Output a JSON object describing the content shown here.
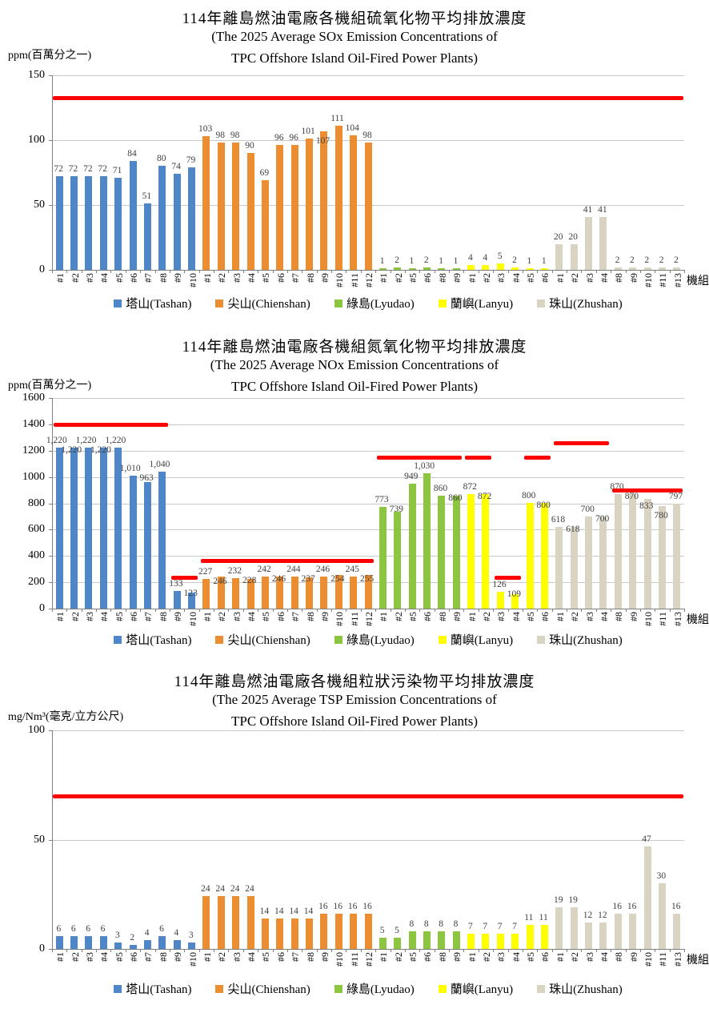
{
  "colors": {
    "tashan": "#4E86C8",
    "chienshan": "#ED8D31",
    "lyudao": "#8CC540",
    "lanyu": "#FFFF00",
    "zhushan": "#D9D3C2",
    "limit": "#FE0000",
    "grid": "#C9C9C9",
    "axis": "#808080",
    "value_label": "#404040"
  },
  "legend": {
    "items": [
      {
        "id": "tashan",
        "label": "塔山(Tashan)"
      },
      {
        "id": "chienshan",
        "label": "尖山(Chienshan)"
      },
      {
        "id": "lyudao",
        "label": "綠島(Lyudao)"
      },
      {
        "id": "lanyu",
        "label": "蘭嶼(Lanyu)"
      },
      {
        "id": "zhushan",
        "label": "珠山(Zhushan)"
      }
    ]
  },
  "x_axis_title": "機組",
  "chart_data": [
    {
      "id": "sox",
      "type": "bar",
      "title_zh": "114年離島燃油電廠各機組硫氧化物平均排放濃度",
      "title_en1": "(The 2025 Average SOx Emission Concentrations of",
      "title_en2": "TPC Offshore Island Oil-Fired Power Plants)",
      "y_unit": "ppm(百萬分之一)",
      "y_max": 150,
      "y_ticks": [
        0,
        50,
        100,
        150
      ],
      "series": [
        {
          "group": "tashan",
          "units": [
            "#1",
            "#2",
            "#3",
            "#4",
            "#5",
            "#6",
            "#7",
            "#8",
            "#9",
            "#10"
          ],
          "values": [
            72,
            72,
            72,
            72,
            71,
            84,
            51,
            80,
            74,
            79
          ]
        },
        {
          "group": "chienshan",
          "units": [
            "#1",
            "#2",
            "#3",
            "#4",
            "#5",
            "#6",
            "#7",
            "#8",
            "#9",
            "#10",
            "#11",
            "#12"
          ],
          "values": [
            103,
            98,
            98,
            90,
            69,
            96,
            96,
            101,
            107,
            111,
            104,
            98
          ]
        },
        {
          "group": "lyudao",
          "units": [
            "#1",
            "#2",
            "#5",
            "#6",
            "#8",
            "#9"
          ],
          "values": [
            1,
            2,
            1,
            2,
            1,
            1
          ]
        },
        {
          "group": "lanyu",
          "units": [
            "#1",
            "#2",
            "#3",
            "#4",
            "#5",
            "#6"
          ],
          "values": [
            4,
            4,
            5,
            2,
            1,
            1
          ]
        },
        {
          "group": "zhushan",
          "units": [
            "#1",
            "#2",
            "#3",
            "#4",
            "#8",
            "#9",
            "#10",
            "#11",
            "#13"
          ],
          "values": [
            20,
            20,
            41,
            41,
            2,
            2,
            2,
            2,
            2
          ]
        }
      ],
      "limits": [
        {
          "label": "133",
          "value": 133,
          "from": 0,
          "to": 42,
          "box_dx": -8,
          "box_dy": -20
        }
      ]
    },
    {
      "id": "nox",
      "type": "bar",
      "title_zh": "114年離島燃油電廠各機組氮氧化物平均排放濃度",
      "title_en1": "(The 2025 Average NOx Emission Concentrations of",
      "title_en2": "TPC Offshore Island Oil-Fired Power Plants)",
      "y_unit": "ppm(百萬分之一)",
      "y_max": 1600,
      "y_ticks": [
        0,
        200,
        400,
        600,
        800,
        1000,
        1200,
        1400,
        1600
      ],
      "series": [
        {
          "group": "tashan",
          "units": [
            "#1",
            "#2",
            "#3",
            "#4",
            "#5",
            "#6",
            "#7",
            "#8",
            "#9",
            "#10"
          ],
          "values": [
            1220,
            1220,
            1220,
            1220,
            1220,
            1010,
            963,
            1040,
            133,
            123
          ]
        },
        {
          "group": "chienshan",
          "units": [
            "#1",
            "#2",
            "#3",
            "#4",
            "#5",
            "#6",
            "#7",
            "#8",
            "#9",
            "#10",
            "#11",
            "#12"
          ],
          "values": [
            227,
            246,
            232,
            228,
            242,
            246,
            244,
            237,
            246,
            254,
            245,
            255
          ]
        },
        {
          "group": "lyudao",
          "units": [
            "#1",
            "#2",
            "#5",
            "#6",
            "#8",
            "#9"
          ],
          "values": [
            773,
            739,
            949,
            1030,
            860,
            860
          ]
        },
        {
          "group": "lanyu",
          "units": [
            "#1",
            "#2",
            "#3",
            "#4",
            "#5",
            "#6"
          ],
          "values": [
            872,
            872,
            126,
            109,
            800,
            800
          ]
        },
        {
          "group": "zhushan",
          "units": [
            "#1",
            "#2",
            "#3",
            "#4",
            "#8",
            "#9",
            "#10",
            "#11",
            "#13"
          ],
          "values": [
            618,
            618,
            700,
            700,
            870,
            870,
            833,
            780,
            797
          ]
        }
      ],
      "limits": [
        {
          "label": "1,400",
          "value": 1400,
          "from": 0,
          "to": 7,
          "box_dx": 30
        },
        {
          "label": "235",
          "value": 235,
          "from": 8,
          "to": 9
        },
        {
          "label": "363",
          "value": 363,
          "from": 10,
          "to": 21
        },
        {
          "label": "1,150",
          "value": 1150,
          "from": 22,
          "to": 27,
          "box_dx": 10
        },
        {
          "label": "1,150",
          "value": 1150,
          "from": 28,
          "to": 29,
          "box_dx": 16
        },
        {
          "label": "235",
          "value": 235,
          "from": 30,
          "to": 31
        },
        {
          "label": "1,150",
          "value": 1150,
          "from": 32,
          "to": 33
        },
        {
          "label": "1,260",
          "value": 1260,
          "from": 34,
          "to": 37,
          "box_dx": 17
        },
        {
          "label": "900",
          "value": 900,
          "from": 38,
          "to": 42,
          "box_dx": -8
        }
      ]
    },
    {
      "id": "tsp",
      "type": "bar",
      "title_zh": "114年離島燃油電廠各機組粒狀污染物平均排放濃度",
      "title_en1": "(The 2025 Average TSP Emission Concentrations of",
      "title_en2": "TPC Offshore Island Oil-Fired Power Plants)",
      "y_unit": "mg/Nm³(毫克/立方公尺)",
      "y_max": 100,
      "y_ticks": [
        0,
        50,
        100
      ],
      "series": [
        {
          "group": "tashan",
          "units": [
            "#1",
            "#2",
            "#3",
            "#4",
            "#5",
            "#6",
            "#7",
            "#8",
            "#9",
            "#10"
          ],
          "values": [
            6,
            6,
            6,
            6,
            3,
            2,
            4,
            6,
            4,
            3
          ]
        },
        {
          "group": "chienshan",
          "units": [
            "#1",
            "#2",
            "#3",
            "#4",
            "#5",
            "#6",
            "#7",
            "#8",
            "#9",
            "#10",
            "#11",
            "#12"
          ],
          "values": [
            24,
            24,
            24,
            24,
            14,
            14,
            14,
            14,
            16,
            16,
            16,
            16
          ]
        },
        {
          "group": "lyudao",
          "units": [
            "#1",
            "#2",
            "#5",
            "#6",
            "#8",
            "#9"
          ],
          "values": [
            5,
            5,
            8,
            8,
            8,
            8
          ]
        },
        {
          "group": "lanyu",
          "units": [
            "#1",
            "#2",
            "#3",
            "#4",
            "#5",
            "#6"
          ],
          "values": [
            7,
            7,
            7,
            7,
            11,
            11
          ]
        },
        {
          "group": "zhushan",
          "units": [
            "#1",
            "#2",
            "#3",
            "#4",
            "#8",
            "#9",
            "#10",
            "#11",
            "#13"
          ],
          "values": [
            19,
            19,
            12,
            12,
            16,
            16,
            47,
            30,
            16
          ]
        }
      ],
      "limits": [
        {
          "label": "70",
          "value": 70,
          "from": 0,
          "to": 42,
          "box_dx": -8,
          "box_dy": -2
        }
      ]
    }
  ]
}
